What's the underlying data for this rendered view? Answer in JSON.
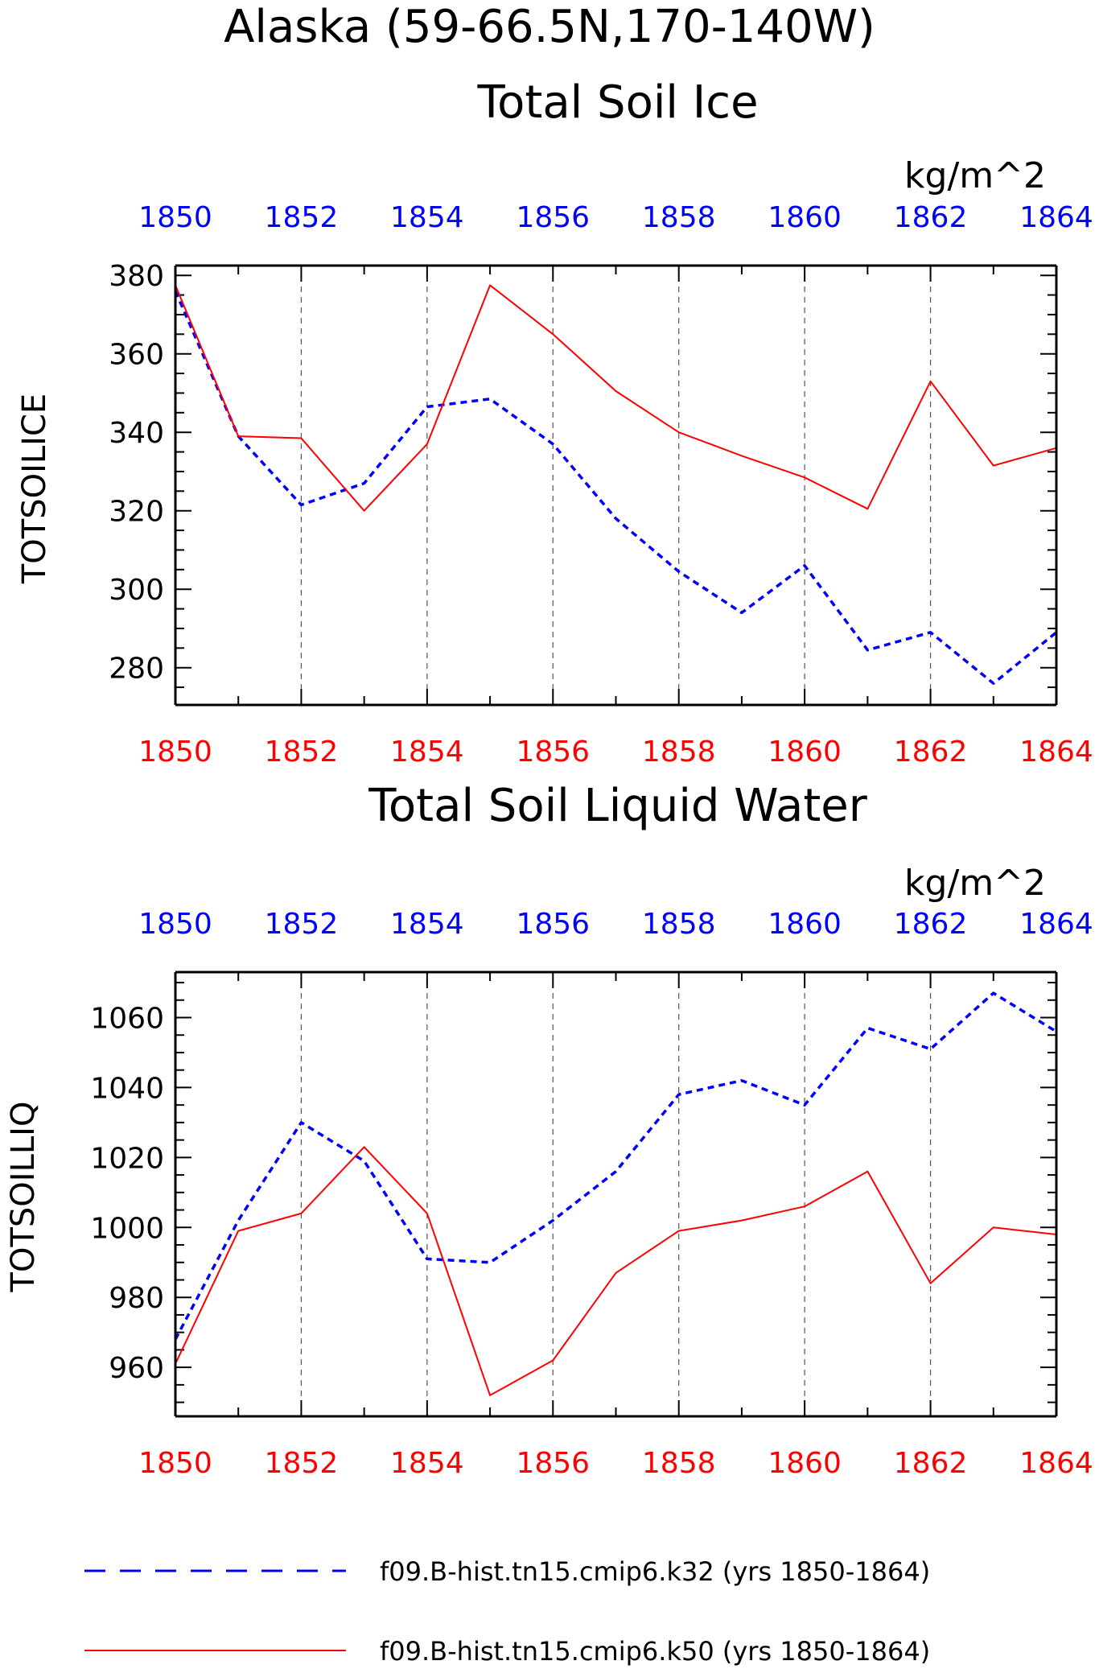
{
  "figure": {
    "title_line1": "Alaska (59-66.5N,170-140W)",
    "legend": [
      {
        "label": "f09.B-hist.tn15.cmip6.k32 (yrs 1850-1864)",
        "color": "#0000ff",
        "dash": "dashed"
      },
      {
        "label": "f09.B-hist.tn15.cmip6.k50 (yrs 1850-1864)",
        "color": "#ff0000",
        "dash": "solid"
      }
    ]
  },
  "chart_data": [
    {
      "type": "line",
      "title": "Total Soil Ice",
      "units": "kg/m^2",
      "ylabel": "TOTSOILICE",
      "x": [
        1850,
        1851,
        1852,
        1853,
        1854,
        1855,
        1856,
        1857,
        1858,
        1859,
        1860,
        1861,
        1862,
        1863,
        1864
      ],
      "xlim": [
        1850,
        1864
      ],
      "xticks": [
        1850,
        1852,
        1854,
        1856,
        1858,
        1860,
        1862,
        1864
      ],
      "top_axis_color": "#0000ff",
      "bottom_axis_color": "#ff0000",
      "ylim": [
        270.5,
        382.5
      ],
      "yticks": [
        280,
        300,
        320,
        340,
        360,
        380
      ],
      "grid": "vertical dashed at major x ticks",
      "series": [
        {
          "name": "f09.B-hist.tn15.cmip6.k32 (yrs 1850-1864)",
          "color": "#0000ff",
          "dash": "dashed",
          "values": [
            376,
            339,
            321.5,
            327,
            346.5,
            348.5,
            337,
            318,
            304.5,
            294,
            306,
            284.5,
            289,
            276,
            289
          ]
        },
        {
          "name": "f09.B-hist.tn15.cmip6.k50 (yrs 1850-1864)",
          "color": "#ff0000",
          "dash": "solid",
          "values": [
            377.5,
            339,
            338.5,
            320,
            337,
            377.5,
            365,
            350.5,
            340,
            334,
            328.5,
            320.5,
            353,
            331.5,
            336
          ]
        }
      ]
    },
    {
      "type": "line",
      "title": "Total Soil Liquid Water",
      "units": "kg/m^2",
      "ylabel": "TOTSOILLIQ",
      "x": [
        1850,
        1851,
        1852,
        1853,
        1854,
        1855,
        1856,
        1857,
        1858,
        1859,
        1860,
        1861,
        1862,
        1863,
        1864
      ],
      "xlim": [
        1850,
        1864
      ],
      "xticks": [
        1850,
        1852,
        1854,
        1856,
        1858,
        1860,
        1862,
        1864
      ],
      "top_axis_color": "#0000ff",
      "bottom_axis_color": "#ff0000",
      "ylim": [
        946,
        1073
      ],
      "yticks": [
        960,
        980,
        1000,
        1020,
        1040,
        1060
      ],
      "grid": "vertical dashed at major x ticks",
      "series": [
        {
          "name": "f09.B-hist.tn15.cmip6.k32 (yrs 1850-1864)",
          "color": "#0000ff",
          "dash": "dashed",
          "values": [
            968,
            1002,
            1030,
            1019,
            991,
            990,
            1002,
            1016,
            1038,
            1042,
            1035,
            1057,
            1051,
            1067,
            1056
          ]
        },
        {
          "name": "f09.B-hist.tn15.cmip6.k50 (yrs 1850-1864)",
          "color": "#ff0000",
          "dash": "solid",
          "values": [
            961,
            999,
            1004,
            1023,
            1004,
            952,
            962,
            987,
            999,
            1002,
            1006,
            1016,
            984,
            1000,
            998
          ]
        }
      ]
    }
  ]
}
